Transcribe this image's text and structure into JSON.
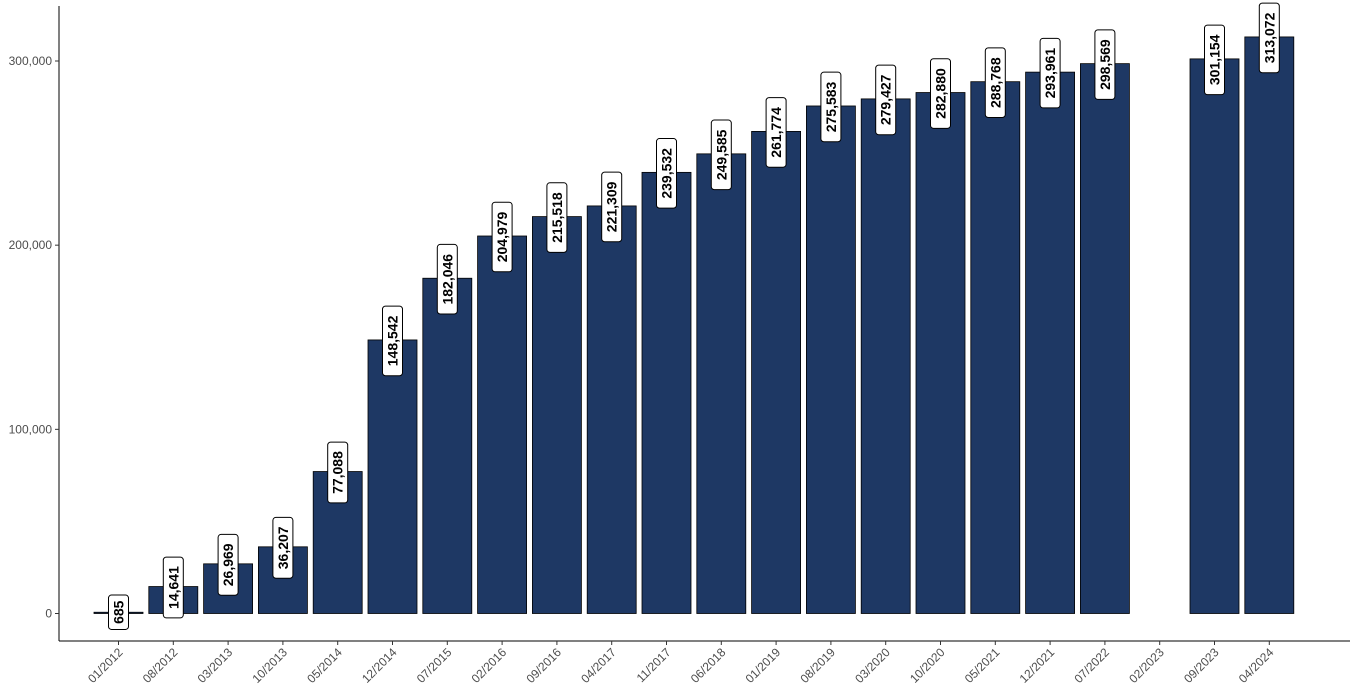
{
  "chart_data": {
    "type": "bar",
    "title": "",
    "xlabel": "",
    "ylabel": "",
    "ylim": [
      -15000,
      330000
    ],
    "yticks": [
      0,
      100000,
      200000,
      300000
    ],
    "ytick_labels": [
      "0",
      "100,000",
      "200,000",
      "300,000"
    ],
    "grid": false,
    "legend": "none",
    "bar_color": "#1e3864",
    "categories": [
      "01/2012",
      "08/2012",
      "03/2013",
      "10/2013",
      "05/2014",
      "12/2014",
      "07/2015",
      "02/2016",
      "09/2016",
      "04/2017",
      "11/2017",
      "06/2018",
      "01/2019",
      "08/2019",
      "03/2020",
      "10/2020",
      "05/2021",
      "12/2021",
      "07/2022",
      "02/2023",
      "09/2023",
      "04/2024"
    ],
    "values": [
      685,
      14641,
      26969,
      36207,
      77088,
      148542,
      182046,
      204979,
      215518,
      221309,
      239532,
      249585,
      261774,
      275583,
      279427,
      282880,
      288768,
      293961,
      298569,
      null,
      301154,
      313072
    ],
    "value_labels": [
      "685",
      "14,641",
      "26,969",
      "36,207",
      "77,088",
      "148,542",
      "182,046",
      "204,979",
      "215,518",
      "221,309",
      "239,532",
      "249,585",
      "261,774",
      "275,583",
      "279,427",
      "282,880",
      "288,768",
      "293,961",
      "298,569",
      "",
      "301,154",
      "313,072"
    ]
  }
}
